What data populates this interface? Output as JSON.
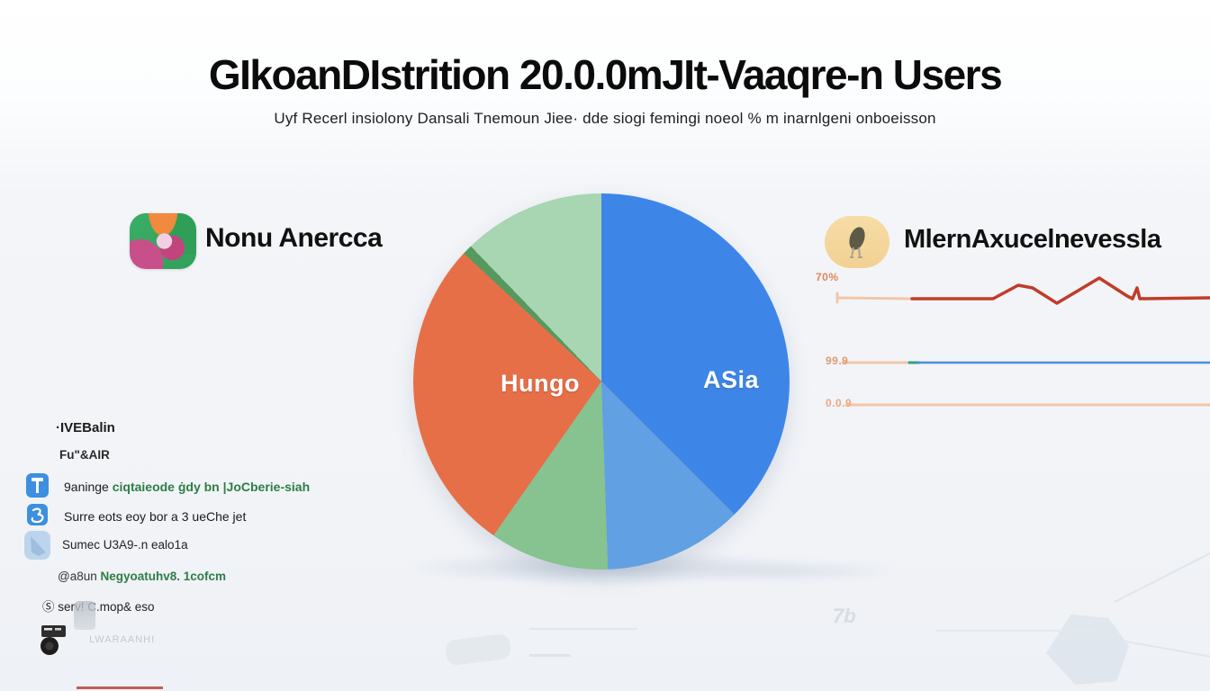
{
  "page": {
    "title": "GIkoanDIstrition 20.0.0mJIt-Vaaqre-n Users",
    "subtitle": "Uyf Recerl insiolony Dansali Tnemoun Jiee· dde siogi femingi noeol % m inarnlgeni onboeisson"
  },
  "sections": {
    "left": {
      "label": "Nonu Anercca",
      "icon": "abstract-globe-icon"
    },
    "right": {
      "label": "MlernAxucelnevessla",
      "icon": "bird-badge-icon"
    }
  },
  "left_list": {
    "items": [
      {
        "text": "·IVEBalin"
      },
      {
        "text": "Fu\"&AIR"
      },
      {
        "icon": "flag-blue-icon",
        "text": "9aninge ",
        "text_green": "ciqtaieode ġdy bn |JoCberie-siah"
      },
      {
        "icon": "swirl-blue-icon",
        "text": "Surre eots eoy bor a 3 ueChe jet"
      },
      {
        "icon": "wedge-lightblue-icon",
        "text": "Sumec U3A9-.n ealo1a"
      },
      {
        "text": "@a8un ",
        "text_green": "Negyoatuhv8. 1cofcm"
      },
      {
        "text": "Ⓢ serv! C.mop& eso"
      },
      {
        "icon": "camera-icon",
        "text": "LWARAANHI"
      }
    ]
  },
  "decor": {
    "watermark": "7b"
  },
  "colors": {
    "red_line": "#c23b2a",
    "blue_line": "#4a90d9",
    "peach_line": "#f1c7a7",
    "teal_segment": "#2fa184",
    "green_text": "#2e7d46",
    "badge_tan": "#f5d9a0"
  },
  "chart_data": [
    {
      "type": "pie",
      "title": "",
      "center_label_left": "Hungo",
      "center_label_right": "ASia",
      "slices": [
        {
          "label": "ASia",
          "color": "#3d86e8",
          "start_deg": 0,
          "end_deg": 135,
          "percent": 37.5
        },
        {
          "label": "",
          "color": "#61a0e2",
          "start_deg": 135,
          "end_deg": 178,
          "percent": 11.9
        },
        {
          "label": "",
          "color": "#87c291",
          "start_deg": 178,
          "end_deg": 215,
          "percent": 10.3
        },
        {
          "label": "Hungo",
          "color": "#e66f48",
          "start_deg": 215,
          "end_deg": 313,
          "percent": 27.2
        },
        {
          "label": "",
          "color": "#55995f",
          "start_deg": 313,
          "end_deg": 316,
          "percent": 0.8
        },
        {
          "label": "",
          "color": "#a8d5b2",
          "start_deg": 316,
          "end_deg": 360,
          "percent": 12.3
        }
      ]
    },
    {
      "type": "line",
      "title": "",
      "legend_position": "none",
      "grid": false,
      "series": [
        {
          "name": "70%",
          "label_color": "#e0855a",
          "segments": [
            {
              "color": "#f1c7a7",
              "width": 3,
              "points": [
                [
                  30,
                  31
                ],
                [
                  30,
                  41
                ]
              ]
            },
            {
              "color": "#f1c7a7",
              "width": 3,
              "points": [
                [
                  30,
                  36
                ],
                [
                  113,
                  37
                ]
              ]
            },
            {
              "color": "#c23b2a",
              "width": 3.5,
              "points": [
                [
                  113,
                  37
                ],
                [
                  203,
                  37
                ],
                [
                  231,
                  22
                ],
                [
                  247,
                  25
                ],
                [
                  274,
                  42
                ],
                [
                  321,
                  14
                ],
                [
                  352,
                  34
                ],
                [
                  358,
                  37
                ],
                [
                  363,
                  25
                ],
                [
                  366,
                  37
                ],
                [
                  444,
                  36
                ]
              ]
            }
          ]
        },
        {
          "name": "99.9",
          "label_color": "#e09a70",
          "segments": [
            {
              "color": "#f1c7a7",
              "width": 3,
              "points": [
                [
                  36,
                  108
                ],
                [
                  112,
                  108
                ]
              ]
            },
            {
              "color": "#2fa184",
              "width": 3,
              "points": [
                [
                  110,
                  108
                ],
                [
                  121,
                  108
                ]
              ]
            },
            {
              "color": "#4a90d9",
              "width": 2.5,
              "points": [
                [
                  120,
                  108
                ],
                [
                  444,
                  108
                ]
              ]
            }
          ]
        },
        {
          "name": "0.0.9",
          "label_color": "#eda981",
          "segments": [
            {
              "color": "#f2c6a6",
              "width": 3,
              "points": [
                [
                  40,
                  155
                ],
                [
                  444,
                  155
                ]
              ]
            }
          ]
        }
      ]
    }
  ]
}
